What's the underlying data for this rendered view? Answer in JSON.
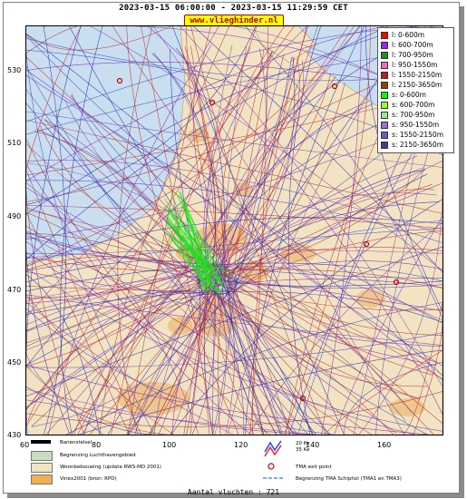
{
  "header": {
    "title": "2023-03-15 06:00:00 - 2023-03-15 11:29:59 CET",
    "site": "www.vlieghinder.nl"
  },
  "axes": {
    "y_ticks": [
      "530",
      "510",
      "490",
      "470",
      "450",
      "430"
    ],
    "x_ticks": [
      "60",
      "80",
      "100",
      "120",
      "140",
      "160"
    ]
  },
  "legend": [
    {
      "label": "l: 0-600m",
      "color": "#ff0000"
    },
    {
      "label": "l: 600-700m",
      "color": "#a020f0"
    },
    {
      "label": "l: 700-950m",
      "color": "#228b22"
    },
    {
      "label": "l: 950-1550m",
      "color": "#ff69b4"
    },
    {
      "label": "l: 1550-2150m",
      "color": "#b22222"
    },
    {
      "label": "l: 2150-3650m",
      "color": "#8b4513"
    },
    {
      "label": "s: 0-600m",
      "color": "#00ff00"
    },
    {
      "label": "s: 600-700m",
      "color": "#a0ff20"
    },
    {
      "label": "s: 700-950m",
      "color": "#90ee90"
    },
    {
      "label": "s: 950-1550m",
      "color": "#9370db"
    },
    {
      "label": "s: 1550-2150m",
      "color": "#6a5acd"
    },
    {
      "label": "s: 2150-3650m",
      "color": "#483d8b"
    }
  ],
  "bottom_legend": {
    "runway": "Banenstelsel",
    "boundary": "Begrenzing Luchthavengebied",
    "residential": "Woonbebouwing (update RWS-MD 2001)",
    "vinex": "Vinex2001 (bron: RPD)",
    "noise_20": "20 Ke",
    "noise_35": "35 Ke",
    "tma_exit": "TMA exit point",
    "tma_boundary": "Begrenzing TMA Schiphol  (TMA1 en TMA3)"
  },
  "footer": {
    "flight_count": "Aantal vluchten : 721"
  },
  "colors": {
    "water": "#c9dff0",
    "land": "#f2e4c2",
    "urban": "#f0c48a",
    "route_blue": "#2020b0",
    "route_purple": "#7a1fb0",
    "route_red": "#c02020"
  }
}
